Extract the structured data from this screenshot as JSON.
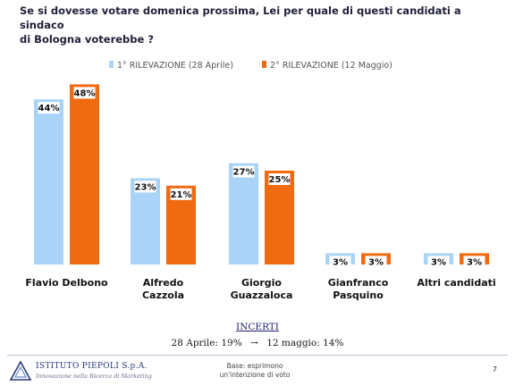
{
  "title_line1": "Se si dovesse votare domenica prossima, Lei per quale di questi candidati a sindaco",
  "title_line2": "di Bologna voterebbe ?",
  "colors": {
    "series1": "#a9d4f7",
    "series2": "#f06a10"
  },
  "chart_data": {
    "type": "bar",
    "categories": [
      "Flavio Delbono",
      "Alfredo Cazzola",
      "Giorgio Guazzaloca",
      "Gianfranco Pasquino",
      "Altri candidati"
    ],
    "category_lines": [
      [
        "Flavio Delbono"
      ],
      [
        "Alfredo",
        "Cazzola"
      ],
      [
        "Giorgio",
        "Guazzaloca"
      ],
      [
        "Gianfranco",
        "Pasquino"
      ],
      [
        "Altri candidati"
      ]
    ],
    "series": [
      {
        "name": "1° RILEVAZIONE (28 Aprile)",
        "values": [
          44,
          23,
          27,
          3,
          3
        ],
        "labels": [
          "44%",
          "23%",
          "27%",
          "3%",
          "3%"
        ]
      },
      {
        "name": "2° RILEVAZIONE (12 Maggio)",
        "values": [
          48,
          21,
          25,
          3,
          3
        ],
        "labels": [
          "48%",
          "21%",
          "25%",
          "3%",
          "3%"
        ]
      }
    ],
    "ylim": [
      0,
      50
    ],
    "legend_position": "top",
    "grid": false
  },
  "incerti": {
    "title": "INCERTI",
    "first": "28 Aprile: 19%",
    "arrow": "→",
    "second": "12 maggio: 14%"
  },
  "footer": {
    "logo_name": "ISTITUTO PIEPOLI S.p.A.",
    "logo_tagline": "Innovazione nella Ricerca di Marketing",
    "base_line1": "Base: esprimono",
    "base_line2": "un'intenzione di voto",
    "page": "7"
  }
}
